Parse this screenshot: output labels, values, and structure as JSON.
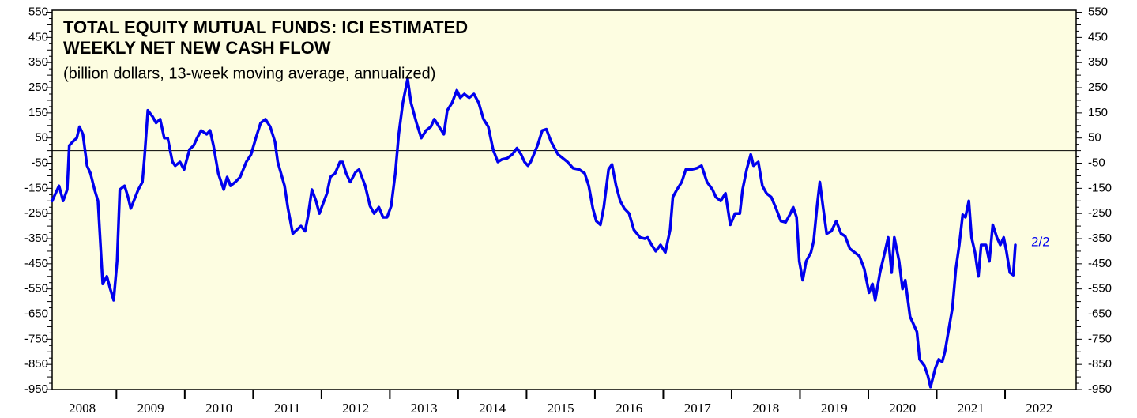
{
  "chart_data": {
    "type": "line",
    "title": [
      "TOTAL EQUITY MUTUAL FUNDS: ICI ESTIMATED",
      "WEEKLY NET NEW CASH FLOW"
    ],
    "subtitle": "(billion dollars, 13-week moving average, annualized)",
    "annotation": "2/2",
    "color": "#0000ee",
    "hline": 0,
    "xlim": [
      2008.06,
      2023.04
    ],
    "ylim": [
      -950,
      558
    ],
    "xticks": [
      2008,
      2009,
      2010,
      2011,
      2012,
      2013,
      2014,
      2015,
      2016,
      2017,
      2018,
      2019,
      2020,
      2021,
      2022
    ],
    "yticks": [
      550,
      450,
      350,
      250,
      150,
      50,
      -50,
      -150,
      -250,
      -350,
      -450,
      -550,
      -650,
      -750,
      -850,
      -950
    ],
    "x": [
      2008.06,
      2008.16,
      2008.22,
      2008.28,
      2008.31,
      2008.36,
      2008.42,
      2008.46,
      2008.51,
      2008.57,
      2008.62,
      2008.68,
      2008.73,
      2008.8,
      2008.86,
      2008.91,
      2008.96,
      2009.01,
      2009.05,
      2009.12,
      2009.17,
      2009.21,
      2009.32,
      2009.38,
      2009.41,
      2009.46,
      2009.53,
      2009.58,
      2009.64,
      2009.7,
      2009.75,
      2009.82,
      2009.86,
      2009.93,
      2009.99,
      2010.07,
      2010.13,
      2010.18,
      2010.24,
      2010.32,
      2010.37,
      2010.42,
      2010.49,
      2010.57,
      2010.62,
      2010.67,
      2010.74,
      2010.81,
      2010.9,
      2010.97,
      2011.04,
      2011.11,
      2011.18,
      2011.25,
      2011.32,
      2011.36,
      2011.46,
      2011.51,
      2011.58,
      2011.64,
      2011.7,
      2011.76,
      2011.8,
      2011.86,
      2011.92,
      2011.97,
      2012.01,
      2012.08,
      2012.13,
      2012.2,
      2012.27,
      2012.31,
      2012.36,
      2012.42,
      2012.5,
      2012.55,
      2012.64,
      2012.71,
      2012.77,
      2012.84,
      2012.9,
      2012.96,
      2013.02,
      2013.08,
      2013.13,
      2013.19,
      2013.26,
      2013.31,
      2013.39,
      2013.46,
      2013.53,
      2013.6,
      2013.65,
      2013.72,
      2013.79,
      2013.84,
      2013.91,
      2013.98,
      2014.03,
      2014.09,
      2014.16,
      2014.23,
      2014.3,
      2014.37,
      2014.44,
      2014.51,
      2014.58,
      2014.64,
      2014.72,
      2014.79,
      2014.86,
      2014.92,
      2014.97,
      2015.02,
      2015.06,
      2015.16,
      2015.23,
      2015.29,
      2015.36,
      2015.46,
      2015.53,
      2015.6,
      2015.68,
      2015.77,
      2015.85,
      2015.91,
      2015.97,
      2016.02,
      2016.08,
      2016.13,
      2016.2,
      2016.25,
      2016.31,
      2016.37,
      2016.43,
      2016.5,
      2016.57,
      2016.66,
      2016.73,
      2016.77,
      2016.83,
      2016.89,
      2016.96,
      2017.03,
      2017.1,
      2017.14,
      2017.2,
      2017.27,
      2017.33,
      2017.41,
      2017.49,
      2017.56,
      2017.64,
      2017.72,
      2017.77,
      2017.84,
      2017.91,
      2017.98,
      2018.05,
      2018.12,
      2018.16,
      2018.22,
      2018.28,
      2018.32,
      2018.39,
      2018.45,
      2018.51,
      2018.58,
      2018.65,
      2018.72,
      2018.79,
      2018.86,
      2018.9,
      2018.95,
      2018.99,
      2019.04,
      2019.09,
      2019.16,
      2019.2,
      2019.25,
      2019.29,
      2019.34,
      2019.39,
      2019.46,
      2019.53,
      2019.6,
      2019.66,
      2019.73,
      2019.8,
      2019.87,
      2019.94,
      2020.01,
      2020.06,
      2020.1,
      2020.17,
      2020.24,
      2020.29,
      2020.34,
      2020.38,
      2020.45,
      2020.5,
      2020.54,
      2020.61,
      2020.66,
      2020.71,
      2020.75,
      2020.82,
      2020.87,
      2020.91,
      2020.98,
      2021.03,
      2021.08,
      2021.12,
      2021.17,
      2021.23,
      2021.28,
      2021.33,
      2021.38,
      2021.42,
      2021.47,
      2021.51,
      2021.56,
      2021.61,
      2021.65,
      2021.72,
      2021.77,
      2021.82,
      2021.88,
      2021.93,
      2021.98,
      2022.02,
      2022.07,
      2022.12,
      2022.15
    ],
    "values": [
      -200,
      -140,
      -200,
      -155,
      20,
      35,
      50,
      95,
      65,
      -60,
      -90,
      -155,
      -200,
      -530,
      -500,
      -550,
      -595,
      -440,
      -155,
      -140,
      -185,
      -230,
      -155,
      -125,
      -30,
      160,
      135,
      110,
      125,
      50,
      50,
      -45,
      -60,
      -45,
      -75,
      5,
      20,
      50,
      80,
      65,
      80,
      20,
      -90,
      -155,
      -105,
      -140,
      -125,
      -105,
      -45,
      -15,
      50,
      110,
      125,
      95,
      35,
      -45,
      -140,
      -230,
      -330,
      -315,
      -300,
      -320,
      -265,
      -155,
      -200,
      -250,
      -220,
      -170,
      -105,
      -90,
      -45,
      -45,
      -90,
      -125,
      -85,
      -75,
      -140,
      -220,
      -250,
      -225,
      -265,
      -265,
      -220,
      -90,
      65,
      190,
      285,
      190,
      110,
      50,
      80,
      95,
      125,
      95,
      65,
      160,
      190,
      240,
      210,
      225,
      210,
      225,
      190,
      125,
      95,
      5,
      -45,
      -35,
      -30,
      -15,
      10,
      -15,
      -45,
      -60,
      -45,
      20,
      80,
      85,
      35,
      -15,
      -30,
      -45,
      -70,
      -75,
      -90,
      -140,
      -230,
      -280,
      -295,
      -225,
      -75,
      -55,
      -140,
      -200,
      -230,
      -250,
      -315,
      -345,
      -350,
      -345,
      -375,
      -400,
      -375,
      -405,
      -315,
      -185,
      -155,
      -125,
      -75,
      -75,
      -70,
      -60,
      -125,
      -155,
      -185,
      -200,
      -170,
      -295,
      -250,
      -250,
      -155,
      -75,
      -15,
      -60,
      -45,
      -140,
      -170,
      -185,
      -230,
      -280,
      -285,
      -250,
      -225,
      -265,
      -440,
      -515,
      -440,
      -405,
      -360,
      -220,
      -125,
      -230,
      -330,
      -320,
      -280,
      -330,
      -340,
      -390,
      -405,
      -420,
      -470,
      -565,
      -530,
      -595,
      -485,
      -405,
      -345,
      -485,
      -345,
      -440,
      -550,
      -515,
      -660,
      -690,
      -720,
      -830,
      -855,
      -895,
      -940,
      -865,
      -830,
      -840,
      -800,
      -720,
      -625,
      -470,
      -375,
      -255,
      -265,
      -200,
      -345,
      -405,
      -500,
      -375,
      -375,
      -440,
      -295,
      -345,
      -375,
      -345,
      -400,
      -485,
      -495,
      -375
    ]
  }
}
